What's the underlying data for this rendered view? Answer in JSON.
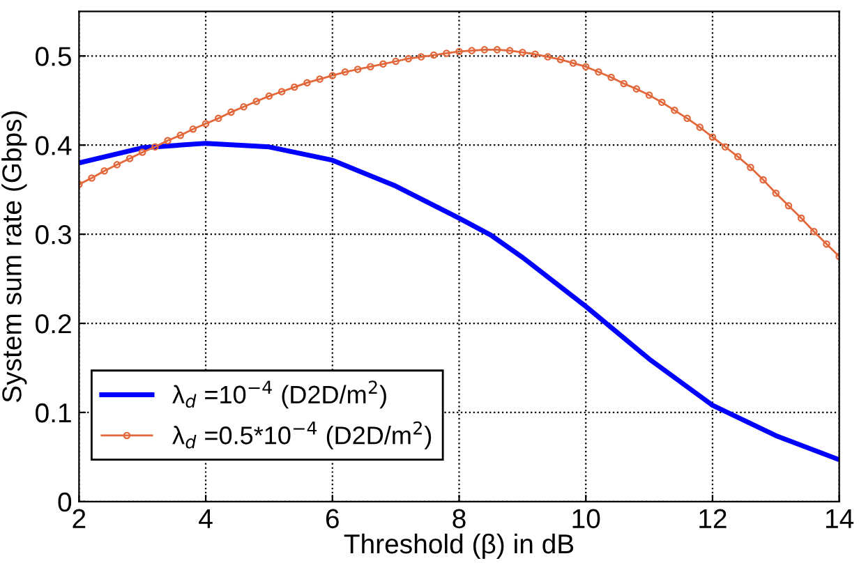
{
  "chart_data": {
    "type": "line",
    "xlabel": "Threshold (β) in dB",
    "ylabel": "System sum rate (Gbps)",
    "xlim": [
      2,
      14
    ],
    "xticks": [
      2,
      4,
      6,
      8,
      10,
      12,
      14
    ],
    "ylim": [
      0,
      0.55
    ],
    "yticks": [
      0,
      0.1,
      0.2,
      0.3,
      0.4,
      0.5
    ],
    "grid": true,
    "legend": "bottom left",
    "series": [
      {
        "name": "λ$_{d}$ =10$^{−4}$ (D2D/m$^{2}$)",
        "color": "#0000ff",
        "marker": "none",
        "x": [
          2,
          3,
          4,
          5,
          6,
          7,
          8,
          8.5,
          9,
          10,
          11,
          12,
          13,
          14
        ],
        "values": [
          0.38,
          0.397,
          0.402,
          0.398,
          0.383,
          0.354,
          0.318,
          0.299,
          0.274,
          0.219,
          0.16,
          0.108,
          0.074,
          0.047
        ]
      },
      {
        "name": "λ$_{d}$ =0.5*10$^{−4}$ (D2D/m$^{2}$)",
        "color": "#e2673a",
        "marker": "circle",
        "x": [
          2.0,
          2.2,
          2.4,
          2.6,
          2.8,
          3.0,
          3.2,
          3.4,
          3.6,
          3.8,
          4.0,
          4.2,
          4.4,
          4.6,
          4.8,
          5.0,
          5.2,
          5.4,
          5.6,
          5.8,
          6.0,
          6.2,
          6.4,
          6.6,
          6.8,
          7.0,
          7.2,
          7.4,
          7.6,
          7.8,
          8.0,
          8.2,
          8.4,
          8.6,
          8.8,
          9.0,
          9.2,
          9.4,
          9.6,
          9.8,
          10.0,
          10.2,
          10.4,
          10.6,
          10.8,
          11.0,
          11.2,
          11.4,
          11.6,
          11.8,
          12.0,
          12.2,
          12.4,
          12.6,
          12.8,
          13.0,
          13.2,
          13.4,
          13.6,
          13.8,
          14.0
        ],
        "values": [
          0.356,
          0.363,
          0.371,
          0.378,
          0.385,
          0.392,
          0.398,
          0.405,
          0.411,
          0.418,
          0.424,
          0.43,
          0.437,
          0.443,
          0.449,
          0.455,
          0.46,
          0.465,
          0.47,
          0.474,
          0.478,
          0.482,
          0.485,
          0.488,
          0.491,
          0.494,
          0.497,
          0.499,
          0.501,
          0.503,
          0.505,
          0.506,
          0.507,
          0.507,
          0.506,
          0.504,
          0.502,
          0.499,
          0.496,
          0.492,
          0.488,
          0.482,
          0.476,
          0.469,
          0.463,
          0.456,
          0.448,
          0.439,
          0.43,
          0.42,
          0.409,
          0.398,
          0.387,
          0.375,
          0.361,
          0.346,
          0.332,
          0.318,
          0.303,
          0.289,
          0.275
        ]
      }
    ]
  }
}
